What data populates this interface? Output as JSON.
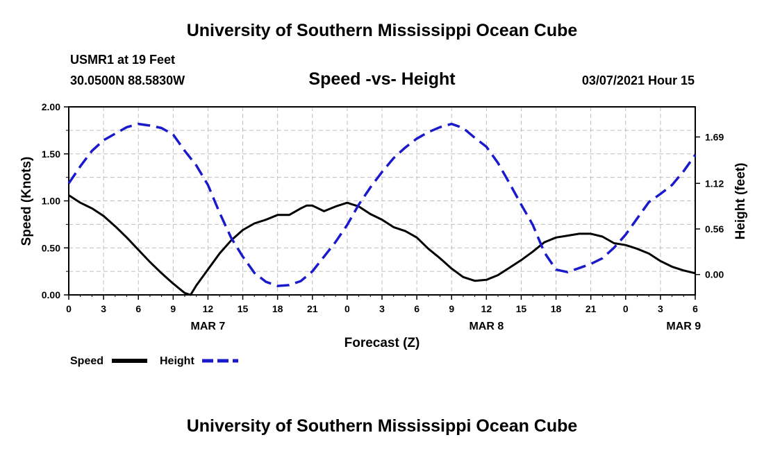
{
  "page": {
    "top_title": "University of Southern Mississippi Ocean Cube",
    "bottom_title": "University of Southern Mississippi Ocean Cube",
    "station": "USMR1 at 19 Feet",
    "coords": "30.0500N 88.5830W",
    "datetime": "03/07/2021 Hour 15"
  },
  "chart_data": {
    "type": "line",
    "title": "Speed -vs- Height",
    "xlabel": "Forecast (Z)",
    "ylabel_left": "Speed (Knots)",
    "ylabel_right": "Height (feet)",
    "xlim": [
      0,
      54
    ],
    "x_ticks": [
      0,
      3,
      6,
      9,
      12,
      15,
      18,
      21,
      24,
      27,
      30,
      33,
      36,
      39,
      42,
      45,
      48,
      51,
      54
    ],
    "x_tick_labels": [
      "0",
      "3",
      "6",
      "9",
      "12",
      "15",
      "18",
      "21",
      "0",
      "3",
      "6",
      "9",
      "12",
      "15",
      "18",
      "21",
      "0",
      "3",
      "6"
    ],
    "date_labels": [
      {
        "x": 12,
        "label": "MAR 7"
      },
      {
        "x": 36,
        "label": "MAR 8"
      },
      {
        "x": 53,
        "label": "MAR 9"
      }
    ],
    "ylim_left": [
      0,
      2.0
    ],
    "y_ticks_left": [
      0,
      0.5,
      1.0,
      1.5,
      2.0
    ],
    "y_tick_labels_left": [
      "0.00",
      "0.50",
      "1.00",
      "1.50",
      "2.00"
    ],
    "ylim_right": [
      -0.25,
      2.06
    ],
    "y_ticks_right": [
      0,
      0.56,
      1.12,
      1.69
    ],
    "y_tick_labels_right": [
      "0.00",
      "0.56",
      "1.12",
      "1.69"
    ],
    "grid": true,
    "legend_placement": "bottom-left",
    "series": [
      {
        "name": "Speed",
        "axis": "left",
        "color": "#000000",
        "style": "solid",
        "x": [
          0,
          1,
          2,
          3,
          4,
          5,
          6,
          7,
          8,
          9,
          10,
          10.5,
          11,
          12,
          13,
          14,
          15,
          16,
          17,
          18,
          19,
          20,
          20.5,
          21,
          22,
          23,
          24,
          25,
          26,
          27,
          28,
          29,
          30,
          31,
          32,
          33,
          34,
          35,
          36,
          37,
          38,
          39,
          40,
          41,
          42,
          43,
          44,
          45,
          46,
          47,
          48,
          49,
          50,
          51,
          52,
          53,
          54
        ],
        "y": [
          1.06,
          0.98,
          0.92,
          0.84,
          0.73,
          0.61,
          0.48,
          0.35,
          0.23,
          0.12,
          0.02,
          0.0,
          0.1,
          0.27,
          0.44,
          0.58,
          0.69,
          0.76,
          0.8,
          0.85,
          0.85,
          0.92,
          0.95,
          0.95,
          0.89,
          0.94,
          0.98,
          0.94,
          0.86,
          0.8,
          0.72,
          0.68,
          0.61,
          0.49,
          0.39,
          0.28,
          0.19,
          0.15,
          0.16,
          0.21,
          0.29,
          0.37,
          0.46,
          0.56,
          0.61,
          0.63,
          0.65,
          0.65,
          0.62,
          0.55,
          0.53,
          0.49,
          0.44,
          0.36,
          0.3,
          0.26,
          0.23
        ]
      },
      {
        "name": "Height",
        "axis": "right",
        "color": "#1a1acc",
        "style": "dashed",
        "x": [
          0,
          1,
          2,
          3,
          4,
          5,
          6,
          7,
          8,
          9,
          10,
          11,
          12,
          13,
          14,
          15,
          16,
          17,
          18,
          19,
          20,
          21,
          22,
          23,
          24,
          25,
          26,
          27,
          28,
          29,
          30,
          31,
          32,
          33,
          34,
          35,
          36,
          37,
          38,
          39,
          40,
          41,
          42,
          43,
          44,
          45,
          46,
          47,
          48,
          49,
          50,
          51,
          52,
          53,
          54
        ],
        "y": [
          1.12,
          1.33,
          1.52,
          1.65,
          1.73,
          1.81,
          1.85,
          1.83,
          1.8,
          1.72,
          1.52,
          1.34,
          1.1,
          0.76,
          0.45,
          0.22,
          0.02,
          -0.09,
          -0.14,
          -0.13,
          -0.08,
          0.04,
          0.22,
          0.4,
          0.61,
          0.86,
          1.07,
          1.26,
          1.43,
          1.56,
          1.67,
          1.75,
          1.81,
          1.85,
          1.8,
          1.68,
          1.57,
          1.37,
          1.12,
          0.86,
          0.61,
          0.27,
          0.06,
          0.03,
          0.08,
          0.13,
          0.2,
          0.33,
          0.49,
          0.69,
          0.89,
          0.99,
          1.1,
          1.27,
          1.47
        ]
      }
    ]
  },
  "legend": {
    "speed_label": "Speed",
    "height_label": "Height"
  }
}
